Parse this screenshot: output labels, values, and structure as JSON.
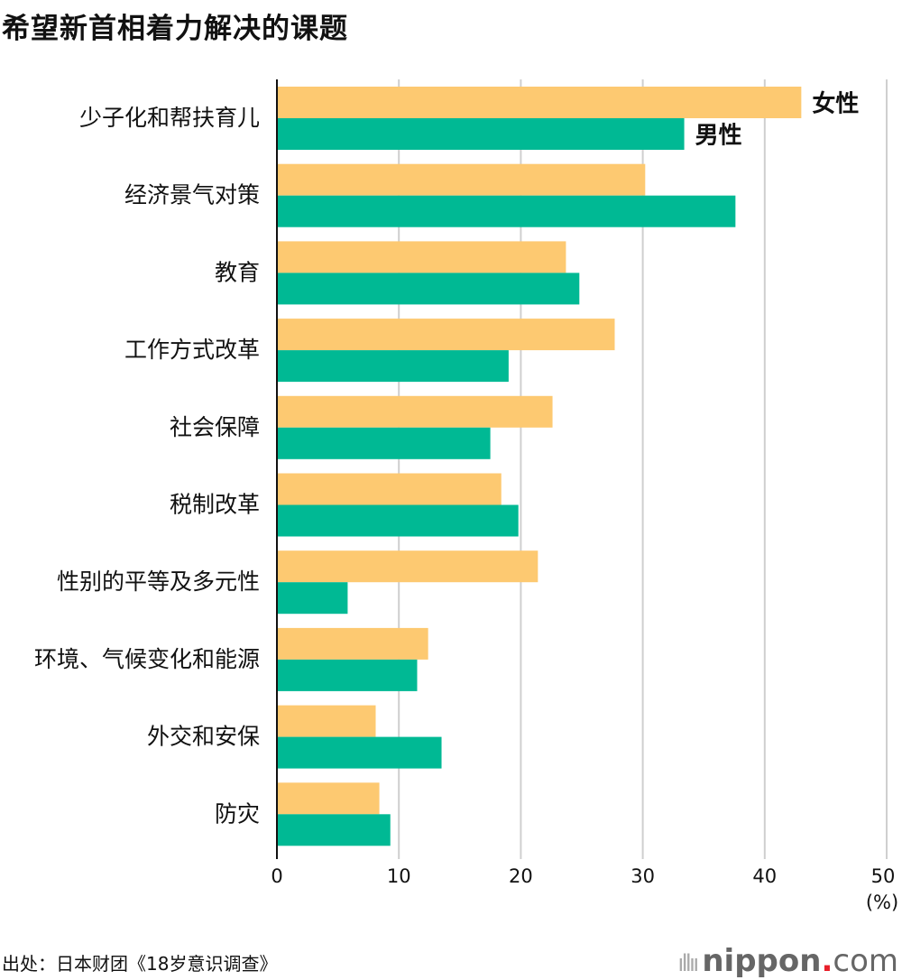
{
  "chart_data": {
    "type": "bar",
    "orientation": "horizontal",
    "title": "希望新首相着力解决的课题",
    "categories": [
      "少子化和帮扶育儿",
      "经济景气对策",
      "教育",
      "工作方式改革",
      "社会保障",
      "税制改革",
      "性别的平等及多元性",
      "环境、气候变化和能源",
      "外交和安保",
      "防灾"
    ],
    "series": [
      {
        "name": "女性",
        "color": "#FDC971",
        "values": [
          43.0,
          30.2,
          23.7,
          27.7,
          22.6,
          18.4,
          21.4,
          12.4,
          8.1,
          8.4
        ]
      },
      {
        "name": "男性",
        "color": "#00B994",
        "values": [
          33.4,
          37.6,
          24.8,
          19.0,
          17.5,
          19.8,
          5.8,
          11.5,
          13.5,
          9.3
        ]
      }
    ],
    "xlim": [
      0,
      50
    ],
    "xticks": [
      "0",
      "10",
      "20",
      "30",
      "40",
      "50"
    ],
    "xunit": "(%)",
    "grid": true,
    "legend": "inline labels at end of first category bars"
  },
  "source": "出处：日本财团《18岁意识调查》",
  "logo": {
    "name": "nippon",
    "dot": ".",
    "suffix": "com"
  }
}
